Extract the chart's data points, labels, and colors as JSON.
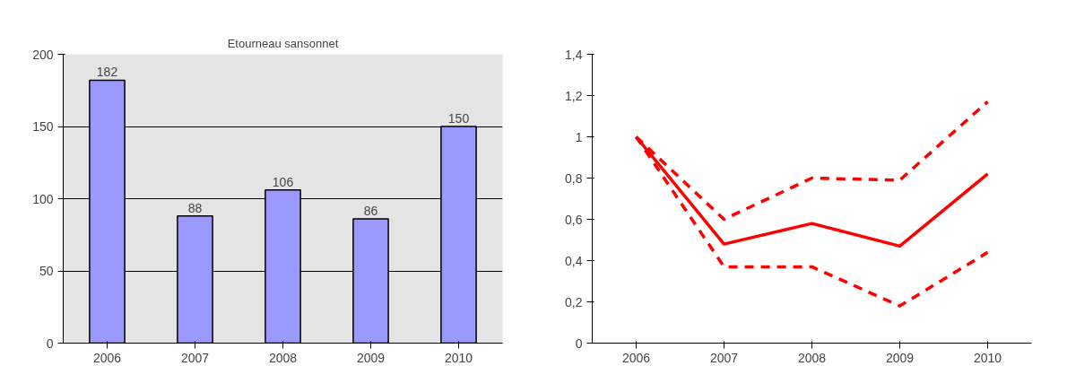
{
  "chart_data": [
    {
      "type": "bar",
      "title": "Etourneau sansonnet",
      "categories": [
        "2006",
        "2007",
        "2008",
        "2009",
        "2010"
      ],
      "values": [
        182,
        88,
        106,
        86,
        150
      ],
      "color": "#9999ff",
      "ylim": [
        0,
        200
      ],
      "yticks": [
        0,
        50,
        100,
        150,
        200
      ],
      "grid": "y",
      "data_labels": true
    },
    {
      "type": "line",
      "categories": [
        "2006",
        "2007",
        "2008",
        "2009",
        "2010"
      ],
      "ylim": [
        0,
        1.4
      ],
      "yticks": [
        0,
        {
          "value": 0.2,
          "label": "0,2"
        },
        {
          "value": 0.4,
          "label": "0,4"
        },
        {
          "value": 0.6,
          "label": "0,6"
        },
        {
          "value": 0.8,
          "label": "0,8"
        },
        1,
        {
          "value": 1.2,
          "label": "1,2"
        },
        {
          "value": 1.4,
          "label": "1,4"
        }
      ],
      "grid": false,
      "series": [
        {
          "color": "#ff0000",
          "line_style": "solid",
          "values": [
            1,
            0.48,
            0.58,
            0.47,
            0.82
          ]
        },
        {
          "color": "#ff0000",
          "line_style": "dashed",
          "values": [
            1,
            0.6,
            0.8,
            0.79,
            1.17
          ]
        },
        {
          "color": "#ff0000",
          "line_style": "dashed",
          "values": [
            1,
            0.37,
            0.37,
            0.18,
            0.44
          ]
        }
      ]
    }
  ]
}
